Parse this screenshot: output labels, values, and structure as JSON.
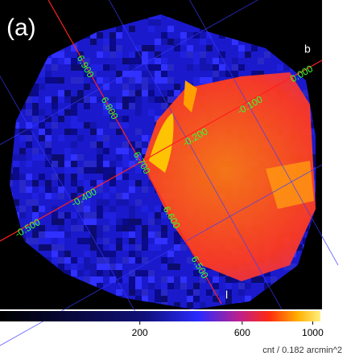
{
  "panel_label": "(a)",
  "axes": {
    "l_name": "l",
    "b_name": "b"
  },
  "l_labels": [
    "6.900",
    "6.800",
    "6.700",
    "6.600",
    "6.500"
  ],
  "b_labels": [
    "0.000",
    "-0.100",
    "-0.200",
    "-0.400",
    "-0.500"
  ],
  "colorbar": {
    "scale": "sqrt",
    "lim": [
      0,
      1050
    ],
    "ticks": [
      200,
      600,
      1000
    ],
    "unit": "cnt / 0.182 arcmin^2"
  }
}
